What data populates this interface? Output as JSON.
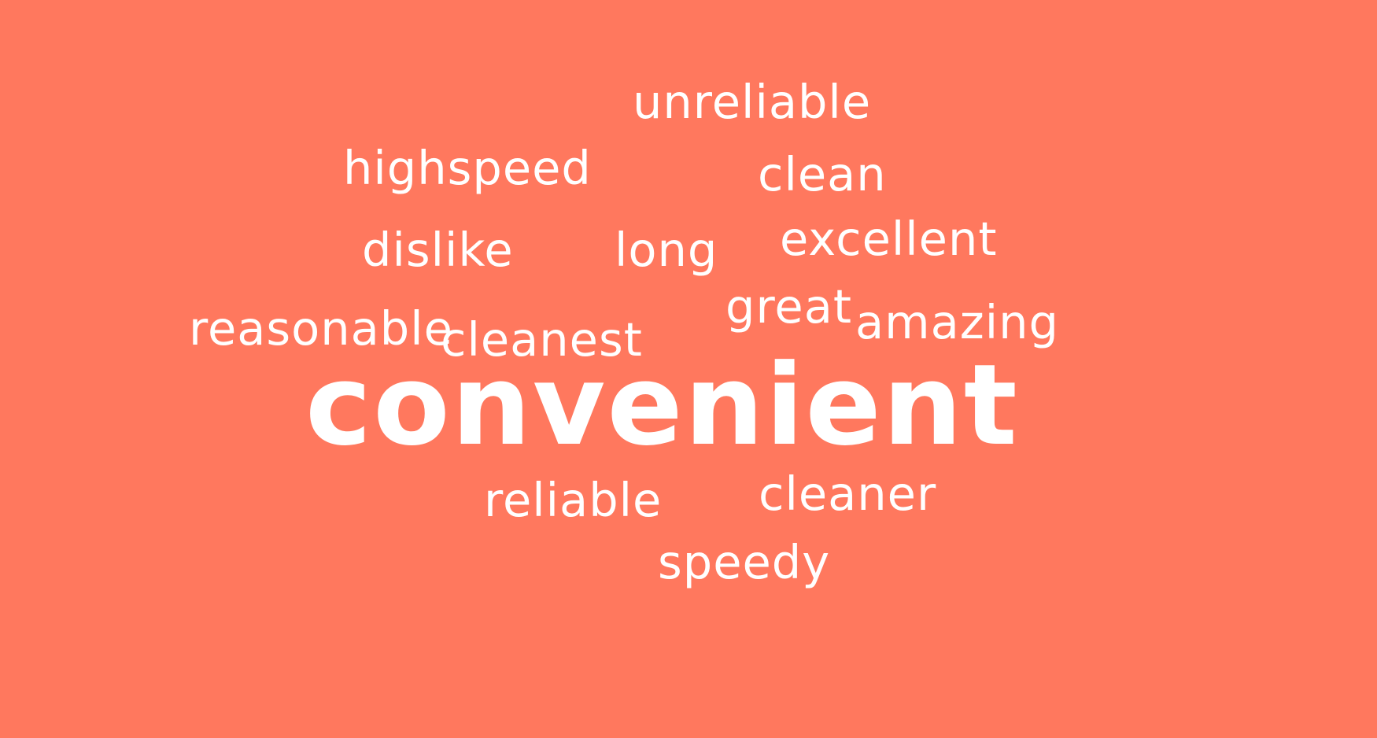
{
  "background_color": "#ff785e",
  "text_color": "#ffffff",
  "words": {
    "unreliable": "unreliable",
    "highspeed": "highspeed",
    "clean": "clean",
    "excellent": "excellent",
    "dislike": "dislike",
    "long": "long",
    "great": "great",
    "amazing": "amazing",
    "reasonable": "reasonable",
    "cleanest": "cleanest",
    "convenient": "convenient",
    "reliable": "reliable",
    "cleaner": "cleaner",
    "speedy": "speedy"
  }
}
